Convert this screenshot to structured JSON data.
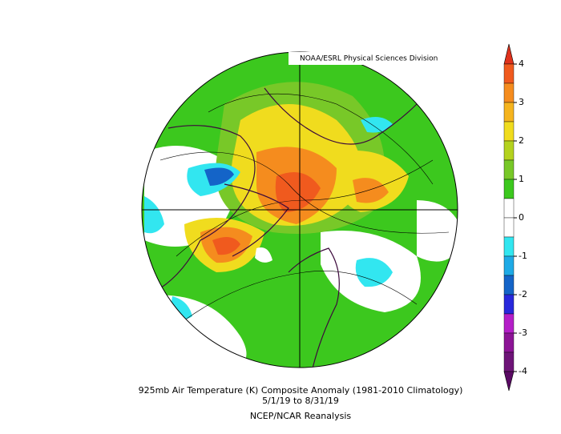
{
  "credit": "NOAA/ESRL Physical Sciences Division",
  "caption": {
    "title": "925mb Air Temperature (K) Composite Anomaly (1981-2010 Climatology)",
    "dates": "5/1/19   to 8/31/19",
    "source": "NCEP/NCAR Reanalysis"
  },
  "colorbar": {
    "ticks": [
      4,
      3,
      2,
      1,
      0,
      -1,
      -2,
      -3,
      -4
    ],
    "colors": [
      "#e0321c",
      "#f05a1e",
      "#f58c1e",
      "#f5b41e",
      "#f0dc1e",
      "#b4d21e",
      "#78c828",
      "#3cc81e",
      "#ffffff",
      "#ffffff",
      "#32e6f0",
      "#1eaae6",
      "#1464c8",
      "#2828dc",
      "#b41ec8",
      "#8c1496",
      "#6e1478",
      "#5a0a64"
    ]
  }
}
